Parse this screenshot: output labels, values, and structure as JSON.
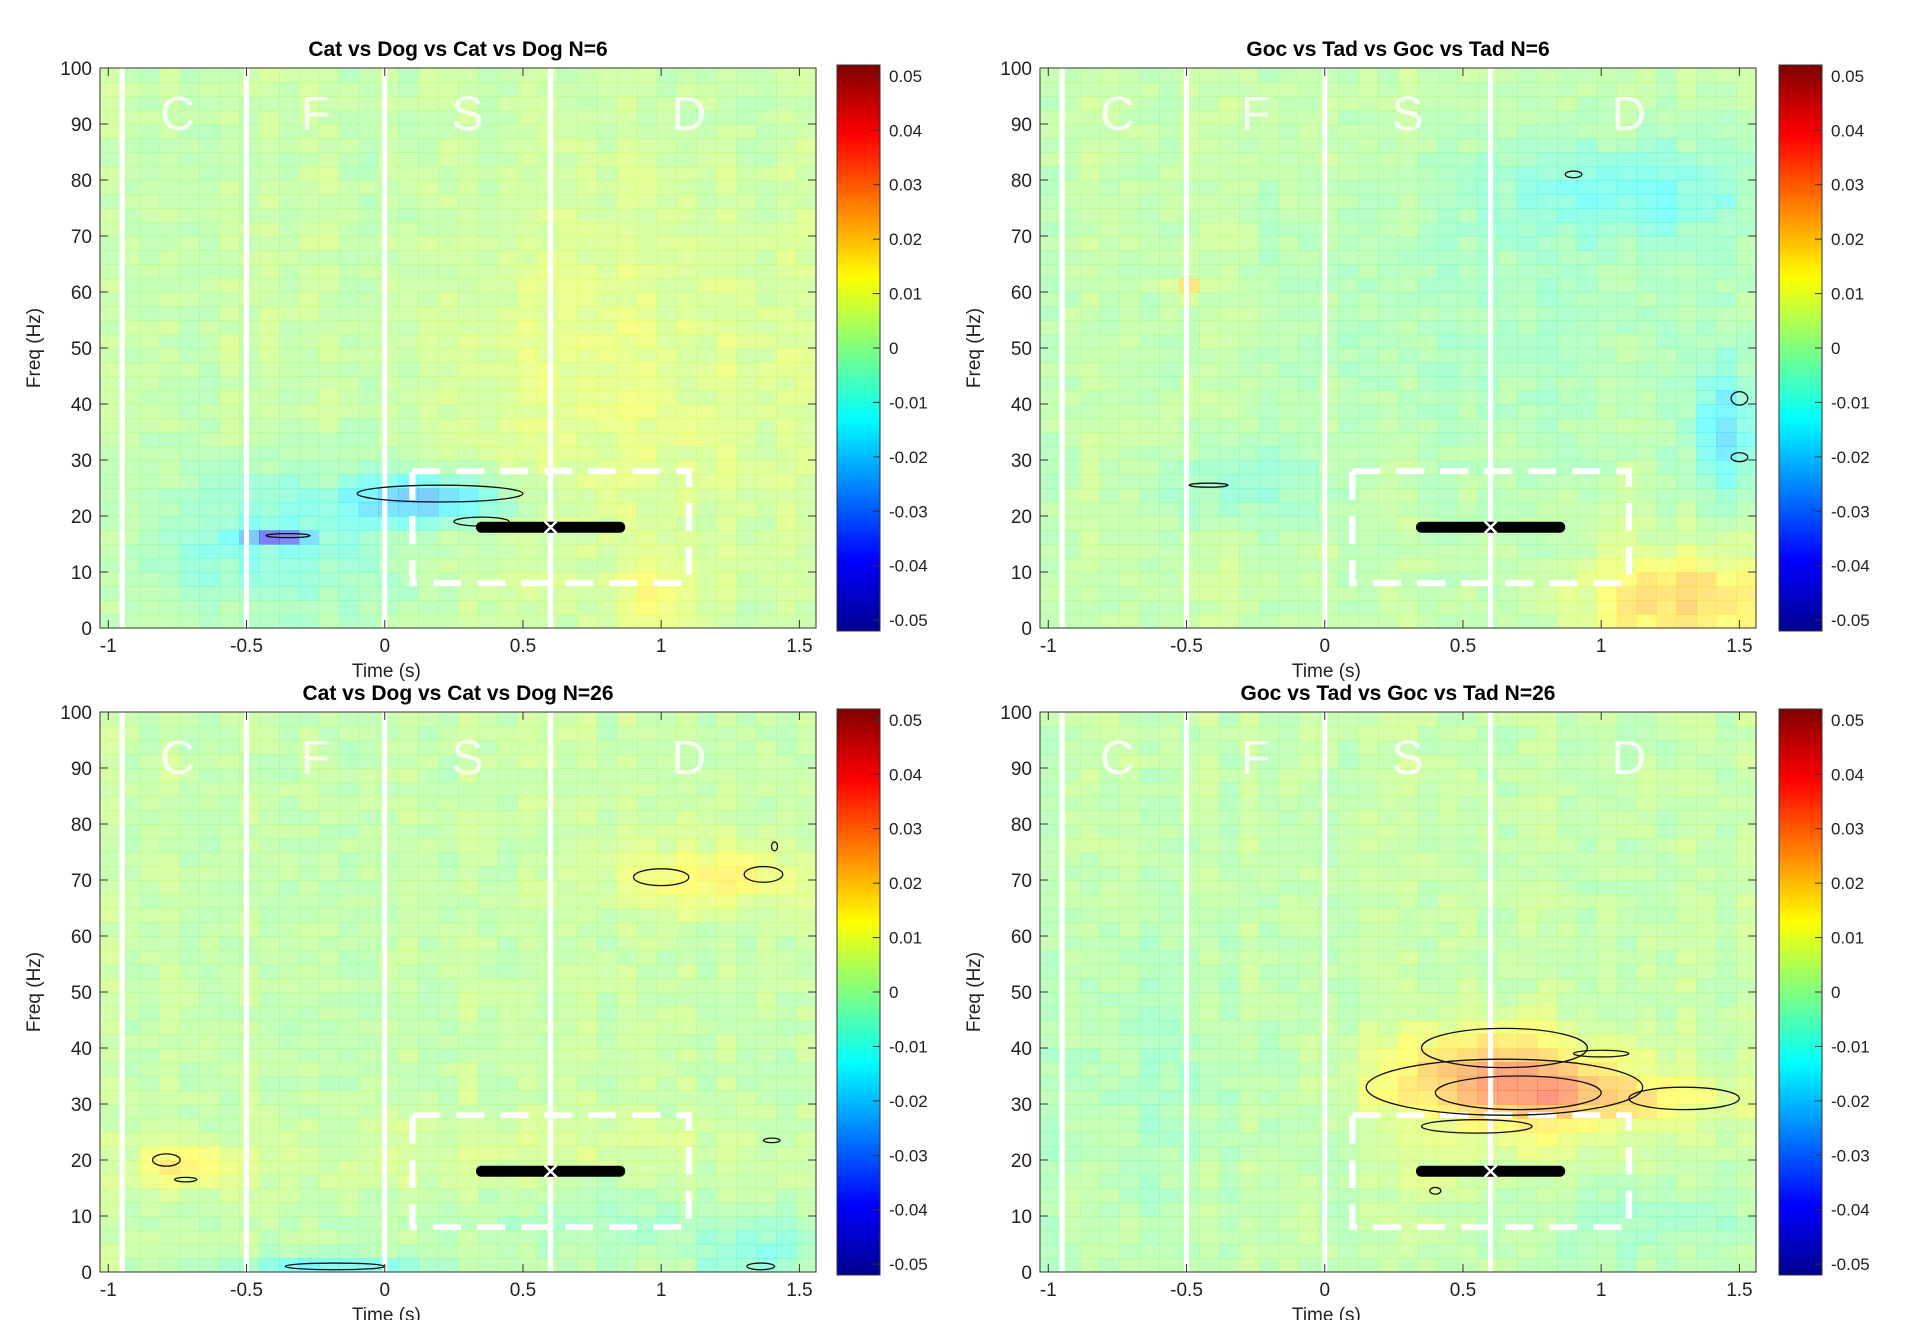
{
  "chart_data": [
    {
      "type": "heatmap",
      "title": "Cat vs Dog vs Cat vs Dog N=6",
      "xlabel": "Time (s)",
      "ylabel": "Freq (Hz)",
      "xlim": [
        -1.03,
        1.56
      ],
      "ylim": [
        0,
        100
      ],
      "xticks": [
        "-1",
        "-0.5",
        "0",
        "0.5",
        "1",
        "1.5"
      ],
      "yticks": [
        "0",
        "10",
        "20",
        "30",
        "40",
        "50",
        "60",
        "70",
        "80",
        "90",
        "100"
      ],
      "colorbar": {
        "colormap": "jet",
        "range": [
          -0.052,
          0.052
        ],
        "ticks": [
          "0.05",
          "0.04",
          "0.03",
          "0.02",
          "0.01",
          "0",
          "-0.01",
          "-0.02",
          "-0.03",
          "-0.04",
          "-0.05"
        ]
      },
      "epochs": [
        {
          "label": "C",
          "t": -0.75
        },
        {
          "label": "F",
          "t": -0.25
        },
        {
          "label": "S",
          "t": 0.3
        },
        {
          "label": "D",
          "t": 1.1
        }
      ],
      "epoch_lines": [
        -0.95,
        -0.5,
        0,
        0.6
      ],
      "roi_box": {
        "t": [
          0.1,
          1.1
        ],
        "f": [
          8,
          28
        ]
      },
      "marker_bar": {
        "t": [
          0.35,
          0.85
        ],
        "f": 18,
        "center": 0.6
      },
      "blobs": [
        {
          "t": -0.4,
          "f": 15,
          "st": 0.3,
          "sf": 10,
          "v": -0.012
        },
        {
          "t": 0.15,
          "f": 23,
          "st": 0.2,
          "sf": 3,
          "v": -0.025
        },
        {
          "t": -0.4,
          "f": 16.5,
          "st": 0.08,
          "sf": 1,
          "v": -0.035
        },
        {
          "t": 0.9,
          "f": 45,
          "st": 0.5,
          "sf": 25,
          "v": 0.006
        },
        {
          "t": 1.0,
          "f": 5,
          "st": 0.1,
          "sf": 5,
          "v": 0.01
        }
      ],
      "contours": [
        {
          "t": 0.2,
          "f": 24,
          "rt": 0.3,
          "rf": 1.5
        },
        {
          "t": 0.35,
          "f": 19,
          "rt": 0.1,
          "rf": 0.8
        },
        {
          "t": -0.35,
          "f": 16.5,
          "rt": 0.08,
          "rf": 0.3
        }
      ]
    },
    {
      "type": "heatmap",
      "title": "Goc vs Tad vs Goc vs Tad N=6",
      "xlabel": "Time (s)",
      "ylabel": "Freq (Hz)",
      "xlim": [
        -1.03,
        1.56
      ],
      "ylim": [
        0,
        100
      ],
      "xticks": [
        "-1",
        "-0.5",
        "0",
        "0.5",
        "1",
        "1.5"
      ],
      "yticks": [
        "0",
        "10",
        "20",
        "30",
        "40",
        "50",
        "60",
        "70",
        "80",
        "90",
        "100"
      ],
      "colorbar": {
        "colormap": "jet",
        "range": [
          -0.052,
          0.052
        ],
        "ticks": [
          "0.05",
          "0.04",
          "0.03",
          "0.02",
          "0.01",
          "0",
          "-0.01",
          "-0.02",
          "-0.03",
          "-0.04",
          "-0.05"
        ]
      },
      "epochs": [
        {
          "label": "C",
          "t": -0.75
        },
        {
          "label": "F",
          "t": -0.25
        },
        {
          "label": "S",
          "t": 0.3
        },
        {
          "label": "D",
          "t": 1.1
        }
      ],
      "epoch_lines": [
        -0.95,
        -0.5,
        0,
        0.6
      ],
      "roi_box": {
        "t": [
          0.1,
          1.1
        ],
        "f": [
          8,
          28
        ]
      },
      "marker_bar": {
        "t": [
          0.35,
          0.85
        ],
        "f": 18,
        "center": 0.6
      },
      "blobs": [
        {
          "t": 1.1,
          "f": 78,
          "st": 0.35,
          "sf": 6,
          "v": -0.012
        },
        {
          "t": 1.3,
          "f": 5,
          "st": 0.25,
          "sf": 6,
          "v": 0.018
        },
        {
          "t": 1.45,
          "f": 35,
          "st": 0.08,
          "sf": 8,
          "v": -0.018
        },
        {
          "t": -0.3,
          "f": 25,
          "st": 0.2,
          "sf": 5,
          "v": -0.008
        },
        {
          "t": 0.7,
          "f": 55,
          "st": 0.8,
          "sf": 20,
          "v": -0.004
        },
        {
          "t": -0.5,
          "f": 60.5,
          "st": 0.05,
          "sf": 1,
          "v": 0.02
        }
      ],
      "contours": [
        {
          "t": 0.9,
          "f": 81,
          "rt": 0.03,
          "rf": 0.6
        },
        {
          "t": 1.5,
          "f": 41,
          "rt": 0.03,
          "rf": 1.2
        },
        {
          "t": 1.5,
          "f": 30.5,
          "rt": 0.03,
          "rf": 0.8
        },
        {
          "t": -0.42,
          "f": 25.5,
          "rt": 0.07,
          "rf": 0.2
        }
      ]
    },
    {
      "type": "heatmap",
      "title": "Cat vs Dog vs Cat vs Dog N=26",
      "xlabel": "Time (s)",
      "ylabel": "Freq (Hz)",
      "xlim": [
        -1.03,
        1.56
      ],
      "ylim": [
        0,
        100
      ],
      "xticks": [
        "-1",
        "-0.5",
        "0",
        "0.5",
        "1",
        "1.5"
      ],
      "yticks": [
        "0",
        "10",
        "20",
        "30",
        "40",
        "50",
        "60",
        "70",
        "80",
        "90",
        "100"
      ],
      "colorbar": {
        "colormap": "jet",
        "range": [
          -0.052,
          0.052
        ],
        "ticks": [
          "0.05",
          "0.04",
          "0.03",
          "0.02",
          "0.01",
          "0",
          "-0.01",
          "-0.02",
          "-0.03",
          "-0.04",
          "-0.05"
        ]
      },
      "epochs": [
        {
          "label": "C",
          "t": -0.75
        },
        {
          "label": "F",
          "t": -0.25
        },
        {
          "label": "S",
          "t": 0.3
        },
        {
          "label": "D",
          "t": 1.1
        }
      ],
      "epoch_lines": [
        -0.95,
        -0.5,
        0,
        0.6
      ],
      "roi_box": {
        "t": [
          0.1,
          1.1
        ],
        "f": [
          8,
          28
        ]
      },
      "marker_bar": {
        "t": [
          0.35,
          0.85
        ],
        "f": 18,
        "center": 0.6
      },
      "blobs": [
        {
          "t": 1.2,
          "f": 71,
          "st": 0.25,
          "sf": 4,
          "v": 0.012
        },
        {
          "t": -0.75,
          "f": 19,
          "st": 0.12,
          "sf": 3,
          "v": 0.012
        },
        {
          "t": -0.2,
          "f": 1,
          "st": 0.25,
          "sf": 1.5,
          "v": -0.015
        },
        {
          "t": 1.35,
          "f": 3,
          "st": 0.15,
          "sf": 4,
          "v": -0.01
        },
        {
          "t": 0.8,
          "f": 10,
          "st": 0.4,
          "sf": 6,
          "v": -0.006
        },
        {
          "t": 0.5,
          "f": 20,
          "st": 0.8,
          "sf": 5,
          "v": 0.004
        }
      ],
      "contours": [
        {
          "t": 1.0,
          "f": 70.5,
          "rt": 0.1,
          "rf": 1.5
        },
        {
          "t": 1.37,
          "f": 71,
          "rt": 0.07,
          "rf": 1.4
        },
        {
          "t": 1.41,
          "f": 76,
          "rt": 0.01,
          "rf": 0.8
        },
        {
          "t": -0.79,
          "f": 20,
          "rt": 0.05,
          "rf": 1.1
        },
        {
          "t": -0.72,
          "f": 16.5,
          "rt": 0.04,
          "rf": 0.4
        },
        {
          "t": -0.18,
          "f": 1,
          "rt": 0.18,
          "rf": 0.6
        },
        {
          "t": 1.36,
          "f": 1,
          "rt": 0.05,
          "rf": 0.6
        },
        {
          "t": 1.4,
          "f": 23.5,
          "rt": 0.03,
          "rf": 0.4
        }
      ]
    },
    {
      "type": "heatmap",
      "title": "Goc vs Tad vs Goc vs Tad N=26",
      "xlabel": "Time (s)",
      "ylabel": "Freq (Hz)",
      "xlim": [
        -1.03,
        1.56
      ],
      "ylim": [
        0,
        100
      ],
      "xticks": [
        "-1",
        "-0.5",
        "0",
        "0.5",
        "1",
        "1.5"
      ],
      "yticks": [
        "0",
        "10",
        "20",
        "30",
        "40",
        "50",
        "60",
        "70",
        "80",
        "90",
        "100"
      ],
      "colorbar": {
        "colormap": "jet",
        "range": [
          -0.052,
          0.052
        ],
        "ticks": [
          "0.05",
          "0.04",
          "0.03",
          "0.02",
          "0.01",
          "0",
          "-0.01",
          "-0.02",
          "-0.03",
          "-0.04",
          "-0.05"
        ]
      },
      "epochs": [
        {
          "label": "C",
          "t": -0.75
        },
        {
          "label": "F",
          "t": -0.25
        },
        {
          "label": "S",
          "t": 0.3
        },
        {
          "label": "D",
          "t": 1.1
        }
      ],
      "epoch_lines": [
        -0.95,
        -0.5,
        0,
        0.6
      ],
      "roi_box": {
        "t": [
          0.1,
          1.1
        ],
        "f": [
          8,
          28
        ]
      },
      "marker_bar": {
        "t": [
          0.35,
          0.85
        ],
        "f": 18,
        "center": 0.6
      },
      "blobs": [
        {
          "t": 0.7,
          "f": 33,
          "st": 0.32,
          "sf": 5,
          "v": 0.018
        },
        {
          "t": 0.6,
          "f": 38,
          "st": 0.25,
          "sf": 5,
          "v": 0.012
        },
        {
          "t": 1.0,
          "f": 31,
          "st": 0.35,
          "sf": 3,
          "v": 0.01
        },
        {
          "t": 0.9,
          "f": 22,
          "st": 0.4,
          "sf": 5,
          "v": 0.004
        },
        {
          "t": -0.7,
          "f": 35,
          "st": 0.3,
          "sf": 25,
          "v": -0.004
        },
        {
          "t": 1.2,
          "f": 10,
          "st": 0.3,
          "sf": 6,
          "v": -0.006
        },
        {
          "t": 0.4,
          "f": 15,
          "st": 0.05,
          "sf": 1,
          "v": 0.012
        }
      ],
      "contours": [
        {
          "t": 0.65,
          "f": 33,
          "rt": 0.5,
          "rf": 5
        },
        {
          "t": 0.7,
          "f": 32,
          "rt": 0.3,
          "rf": 3
        },
        {
          "t": 0.65,
          "f": 40,
          "rt": 0.3,
          "rf": 3.5
        },
        {
          "t": 1.0,
          "f": 39,
          "rt": 0.1,
          "rf": 0.6
        },
        {
          "t": 1.3,
          "f": 31,
          "rt": 0.2,
          "rf": 2
        },
        {
          "t": 0.55,
          "f": 26,
          "rt": 0.2,
          "rf": 1.2
        },
        {
          "t": 0.4,
          "f": 14.5,
          "rt": 0.02,
          "rf": 0.6
        }
      ]
    }
  ]
}
